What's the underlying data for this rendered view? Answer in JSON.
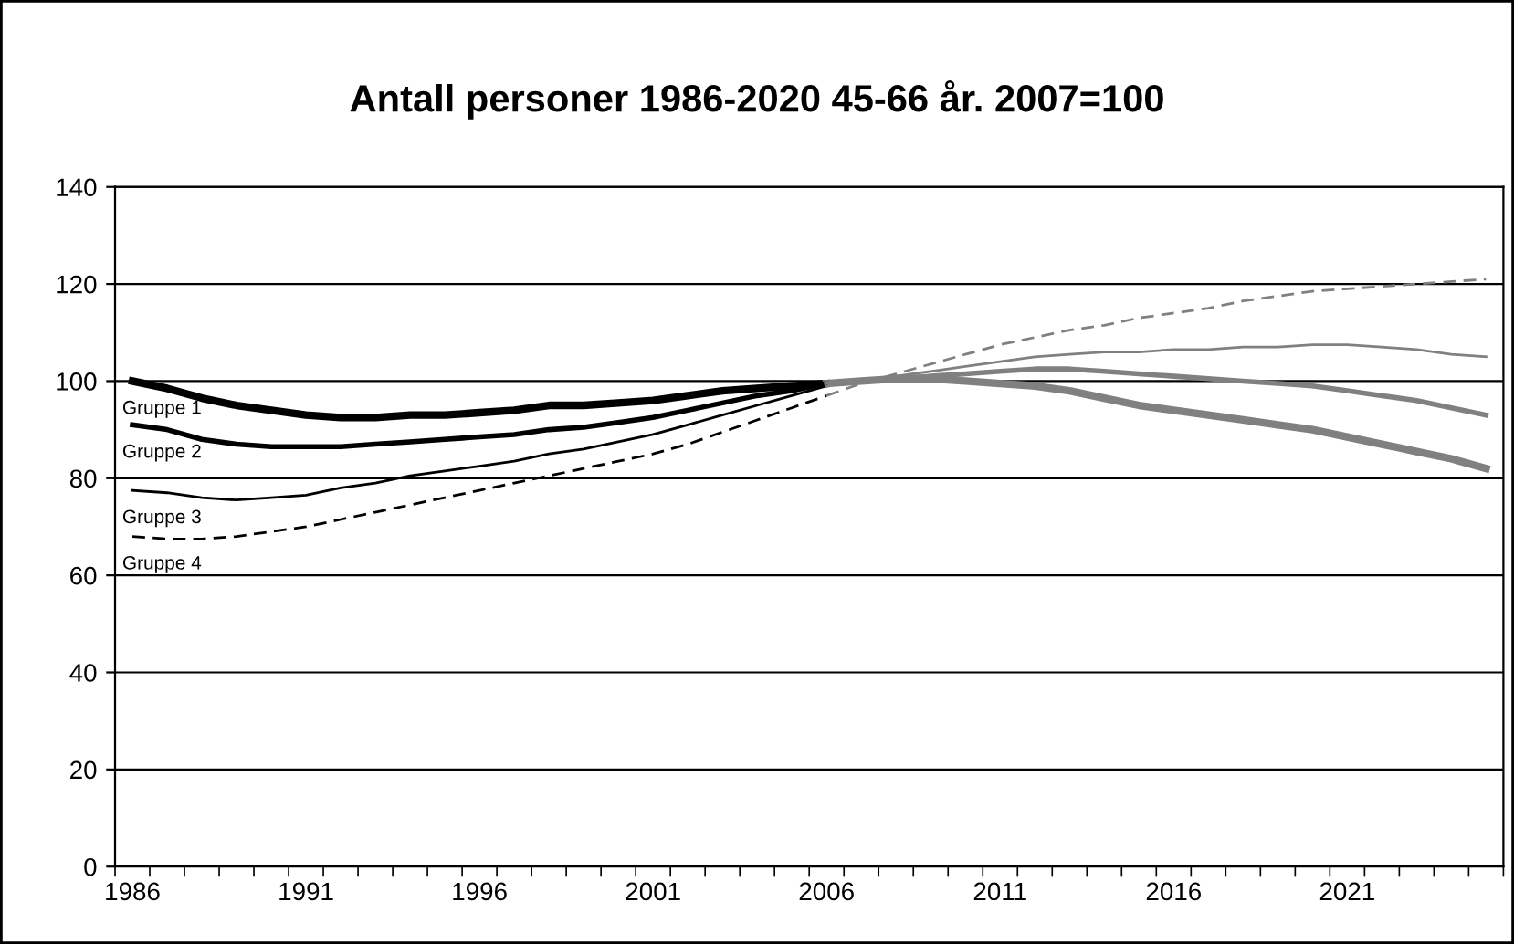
{
  "chart_data": {
    "type": "line",
    "title": "Antall personer 1986-2020 45-66 år. 2007=100",
    "categories": [
      "1986",
      null,
      null,
      null,
      null,
      "1991",
      null,
      null,
      null,
      null,
      "1996",
      null,
      null,
      null,
      null,
      "2001",
      null,
      null,
      null,
      null,
      "2006",
      null,
      null,
      null,
      null,
      "2011",
      null,
      null,
      null,
      null,
      "2016",
      null,
      null,
      null,
      null,
      "2021",
      null,
      null,
      null,
      null
    ],
    "series": [
      {
        "name": "Gruppe 1",
        "color": "#000000",
        "values": [
          100,
          98.5,
          96.5,
          95,
          94,
          93,
          92.5,
          92.5,
          93,
          93,
          93.5,
          94,
          95,
          95,
          95.5,
          96,
          97,
          98,
          98.5,
          99,
          99.5,
          null,
          null,
          null,
          null,
          null,
          null,
          null,
          null,
          null,
          null,
          null,
          null,
          null,
          null,
          null,
          null,
          null,
          null,
          null
        ]
      },
      {
        "color": "#808080",
        "values": [
          null,
          null,
          null,
          null,
          null,
          null,
          null,
          null,
          null,
          null,
          null,
          null,
          null,
          null,
          null,
          null,
          null,
          null,
          null,
          null,
          99.5,
          100,
          100.5,
          100.5,
          100,
          99.5,
          99,
          98,
          96.5,
          95,
          94,
          93,
          92,
          91,
          90,
          88.5,
          87,
          85.5,
          84,
          82
        ]
      },
      {
        "name": "Gruppe 2",
        "color": "#000000",
        "values": [
          91,
          90,
          88,
          87,
          86.5,
          86.5,
          86.5,
          87,
          87.5,
          88,
          88.5,
          89,
          90,
          90.5,
          91.5,
          92.5,
          94,
          95.5,
          97,
          98,
          99.5,
          null,
          null,
          null,
          null,
          null,
          null,
          null,
          null,
          null,
          null,
          null,
          null,
          null,
          null,
          null,
          null,
          null,
          null,
          null
        ]
      },
      {
        "color": "#808080",
        "values": [
          null,
          null,
          null,
          null,
          null,
          null,
          null,
          null,
          null,
          null,
          null,
          null,
          null,
          null,
          null,
          null,
          null,
          null,
          null,
          null,
          99.5,
          100,
          100.5,
          101,
          101.5,
          102,
          102.5,
          102.5,
          102,
          101.5,
          101,
          100.5,
          100,
          99.5,
          99,
          98,
          97,
          96,
          94.5,
          93
        ]
      },
      {
        "name": "Gruppe 3",
        "color": "#000000",
        "values": [
          77.5,
          77,
          76,
          75.5,
          76,
          76.5,
          78,
          79,
          80.5,
          81.5,
          82.5,
          83.5,
          85,
          86,
          87.5,
          89,
          91,
          93,
          95,
          97,
          99,
          null,
          null,
          null,
          null,
          null,
          null,
          null,
          null,
          null,
          null,
          null,
          null,
          null,
          null,
          null,
          null,
          null,
          null,
          null
        ]
      },
      {
        "color": "#808080",
        "values": [
          null,
          null,
          null,
          null,
          null,
          null,
          null,
          null,
          null,
          null,
          null,
          null,
          null,
          null,
          null,
          null,
          null,
          null,
          null,
          null,
          99,
          100,
          101,
          102,
          103,
          104,
          105,
          105.5,
          106,
          106,
          106.5,
          106.5,
          107,
          107,
          107.5,
          107.5,
          107,
          106.5,
          105.5,
          105
        ]
      },
      {
        "name": "Gruppe 4",
        "color": "#000000",
        "line_style": "dashed",
        "values": [
          68,
          67.5,
          67.5,
          68,
          69,
          70,
          71.5,
          73,
          74.5,
          76,
          77.5,
          79,
          80.5,
          82,
          83.5,
          85,
          87,
          89.5,
          92,
          94.5,
          97,
          null,
          null,
          null,
          null,
          null,
          null,
          null,
          null,
          null,
          null,
          null,
          null,
          null,
          null,
          null,
          null,
          null,
          null,
          null
        ]
      },
      {
        "color": "#808080",
        "line_style": "dashed",
        "values": [
          null,
          null,
          null,
          null,
          null,
          null,
          null,
          null,
          null,
          null,
          null,
          null,
          null,
          null,
          null,
          null,
          null,
          null,
          null,
          null,
          97,
          99.5,
          101.5,
          103.5,
          105.5,
          107.5,
          109,
          110.5,
          111.5,
          113,
          114,
          115,
          116.5,
          117.5,
          118.5,
          119,
          119.5,
          120,
          120.5,
          121
        ]
      }
    ],
    "ylim": [
      0,
      140
    ],
    "yticks": [
      0,
      20,
      40,
      60,
      80,
      100,
      120,
      140
    ],
    "grid": "y",
    "legend": false,
    "marker": "none"
  }
}
